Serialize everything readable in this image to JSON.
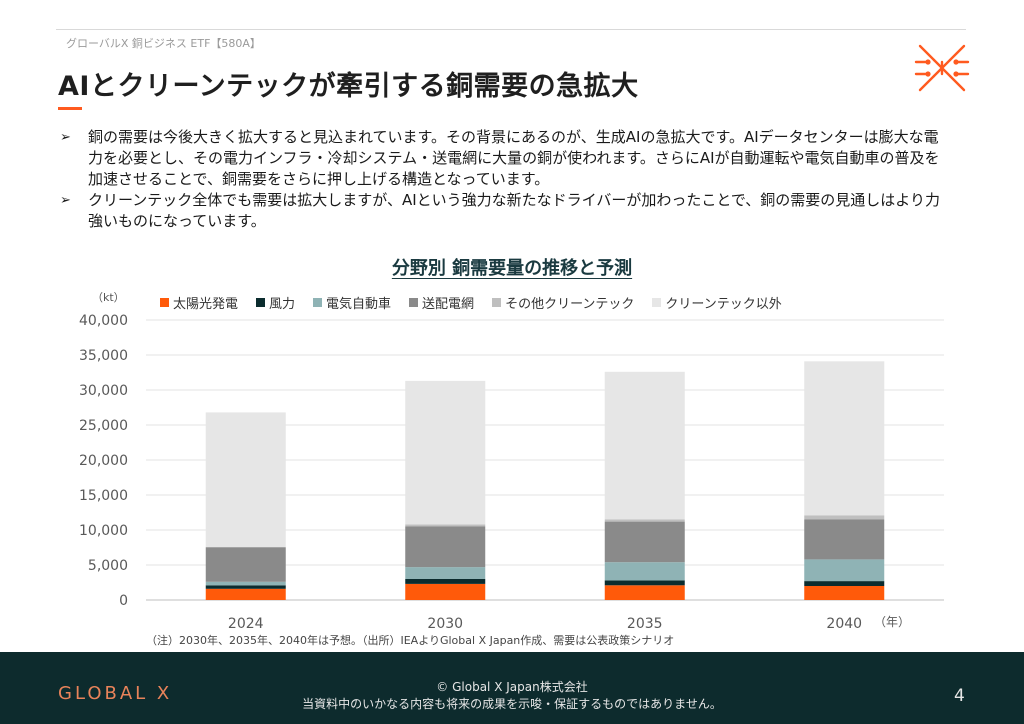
{
  "header": {
    "etf_label": "グローバルX 銅ビジネス ETF【580A】",
    "title": "AIとクリーンテックが牽引する銅需要の急拡大"
  },
  "bullets": [
    "銅の需要は今後大きく拡大すると見込まれています。その背景にあるのが、生成AIの急拡大です。AIデータセンターは膨大な電力を必要とし、その電力インフラ・冷却システム・送電網に大量の銅が使われます。さらにAIが自動運転や電気自動車の普及を加速させることで、銅需要をさらに押し上げる構造となっています。",
    "クリーンテック全体でも需要は拡大しますが、AIという強力な新たなドライバーが加わったことで、銅の需要の見通しはより力強いものになっています。"
  ],
  "bullet_mark": "➢",
  "chart_data": {
    "type": "bar",
    "stacked": true,
    "title": "分野別 銅需要量の推移と予測",
    "ylabel": "（kt）",
    "xlabel": "（年）",
    "categories": [
      "2024",
      "2030",
      "2035",
      "2040"
    ],
    "ylim": [
      0,
      40000
    ],
    "yticks": [
      "0",
      "5,000",
      "10,000",
      "15,000",
      "20,000",
      "25,000",
      "30,000",
      "35,000",
      "40,000"
    ],
    "grid": true,
    "legend_position": "top",
    "series": [
      {
        "name": "太陽光発電",
        "color": "#ff5a0a",
        "values": [
          1600,
          2300,
          2100,
          2000
        ]
      },
      {
        "name": "風力",
        "color": "#0b2c2e",
        "values": [
          500,
          700,
          700,
          700
        ]
      },
      {
        "name": "電気自動車",
        "color": "#8fb3b5",
        "values": [
          500,
          1700,
          2600,
          3100
        ]
      },
      {
        "name": "送配電網",
        "color": "#8a8a8a",
        "values": [
          4900,
          5800,
          5800,
          5700
        ]
      },
      {
        "name": "その他クリーンテック",
        "color": "#bfbfbf",
        "values": [
          100,
          300,
          300,
          600
        ]
      },
      {
        "name": "クリーンテック以外",
        "color": "#e6e6e6",
        "values": [
          19200,
          20500,
          21100,
          22000
        ]
      }
    ]
  },
  "note": "（注）2030年、2035年、2040年は予想。（出所）IEAよりGlobal X Japan作成、需要は公表政策シナリオ",
  "footer": {
    "brand": "GLOBAL X",
    "copyright": "© Global X Japan株式会社",
    "disclaimer": "当資料中のいかなる内容も将来の成果を示唆・保証するものではありません。",
    "page_number": "4"
  },
  "colors": {
    "accent": "#ff5a1f",
    "footer_bg": "#0d2b2d"
  },
  "icons": {
    "logo": "copper-circuit-x-icon"
  }
}
